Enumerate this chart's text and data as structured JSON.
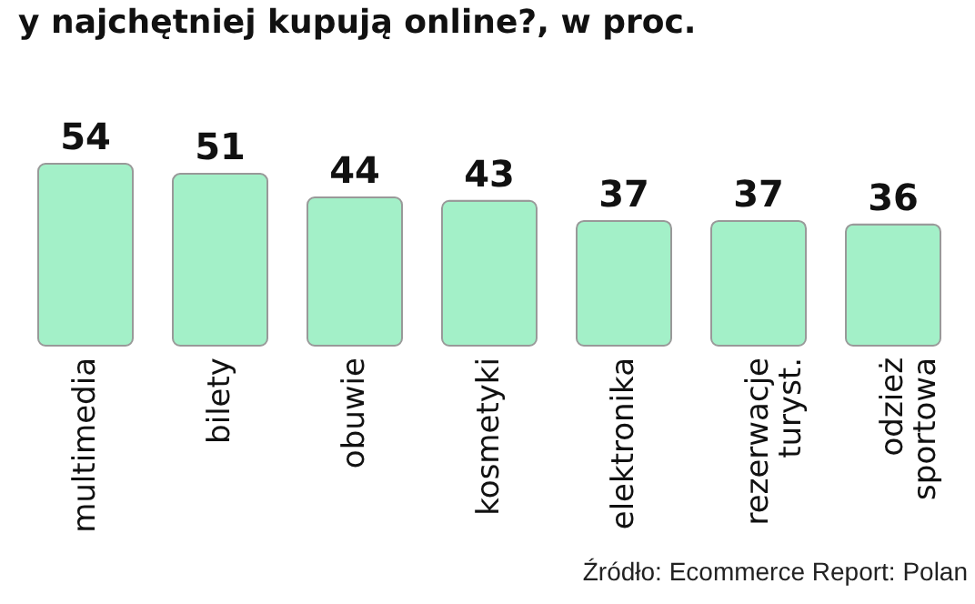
{
  "chart_data": {
    "type": "bar",
    "title": "y najchętniej kupują online?, w proc.",
    "categories": [
      "multimedia",
      "bilety",
      "obuwie",
      "kosmetyki",
      "elektronika",
      "rezerwacje\nturyst.",
      "odzież\nsportowa"
    ],
    "values": [
      54,
      51,
      44,
      43,
      37,
      37,
      36
    ],
    "color": "#a3f0c8",
    "data_labels": true,
    "annotations": [
      "Źródło: Ecommerce Report: Polan"
    ]
  }
}
